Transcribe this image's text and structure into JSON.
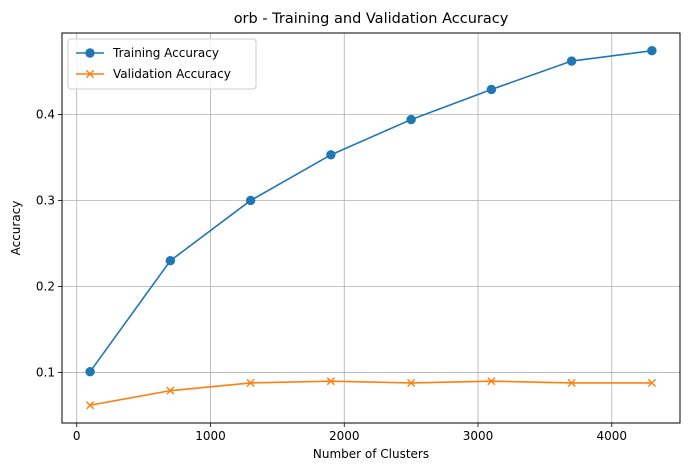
{
  "chart_data": {
    "type": "line",
    "title": "orb - Training and Validation Accuracy",
    "xlabel": "Number of Clusters",
    "ylabel": "Accuracy",
    "x": [
      100,
      700,
      1300,
      1900,
      2500,
      3100,
      3700,
      4300
    ],
    "series": [
      {
        "name": "Training Accuracy",
        "values": [
          0.101,
          0.23,
          0.3,
          0.353,
          0.394,
          0.429,
          0.462,
          0.474
        ],
        "color": "#1f77b4",
        "marker": "circle"
      },
      {
        "name": "Validation Accuracy",
        "values": [
          0.062,
          0.079,
          0.088,
          0.09,
          0.088,
          0.09,
          0.088,
          0.088
        ],
        "color": "#ff7f0e",
        "marker": "x"
      }
    ],
    "xlim": [
      -110,
      4510
    ],
    "ylim": [
      0.0414,
      0.4946
    ],
    "xticks": [
      0,
      1000,
      2000,
      3000,
      4000
    ],
    "xtick_labels": [
      "0",
      "1000",
      "2000",
      "3000",
      "4000"
    ],
    "yticks": [
      0.1,
      0.2,
      0.3,
      0.4
    ],
    "ytick_labels": [
      "0.1",
      "0.2",
      "0.3",
      "0.4"
    ],
    "grid": true,
    "legend_position": "upper-left"
  }
}
